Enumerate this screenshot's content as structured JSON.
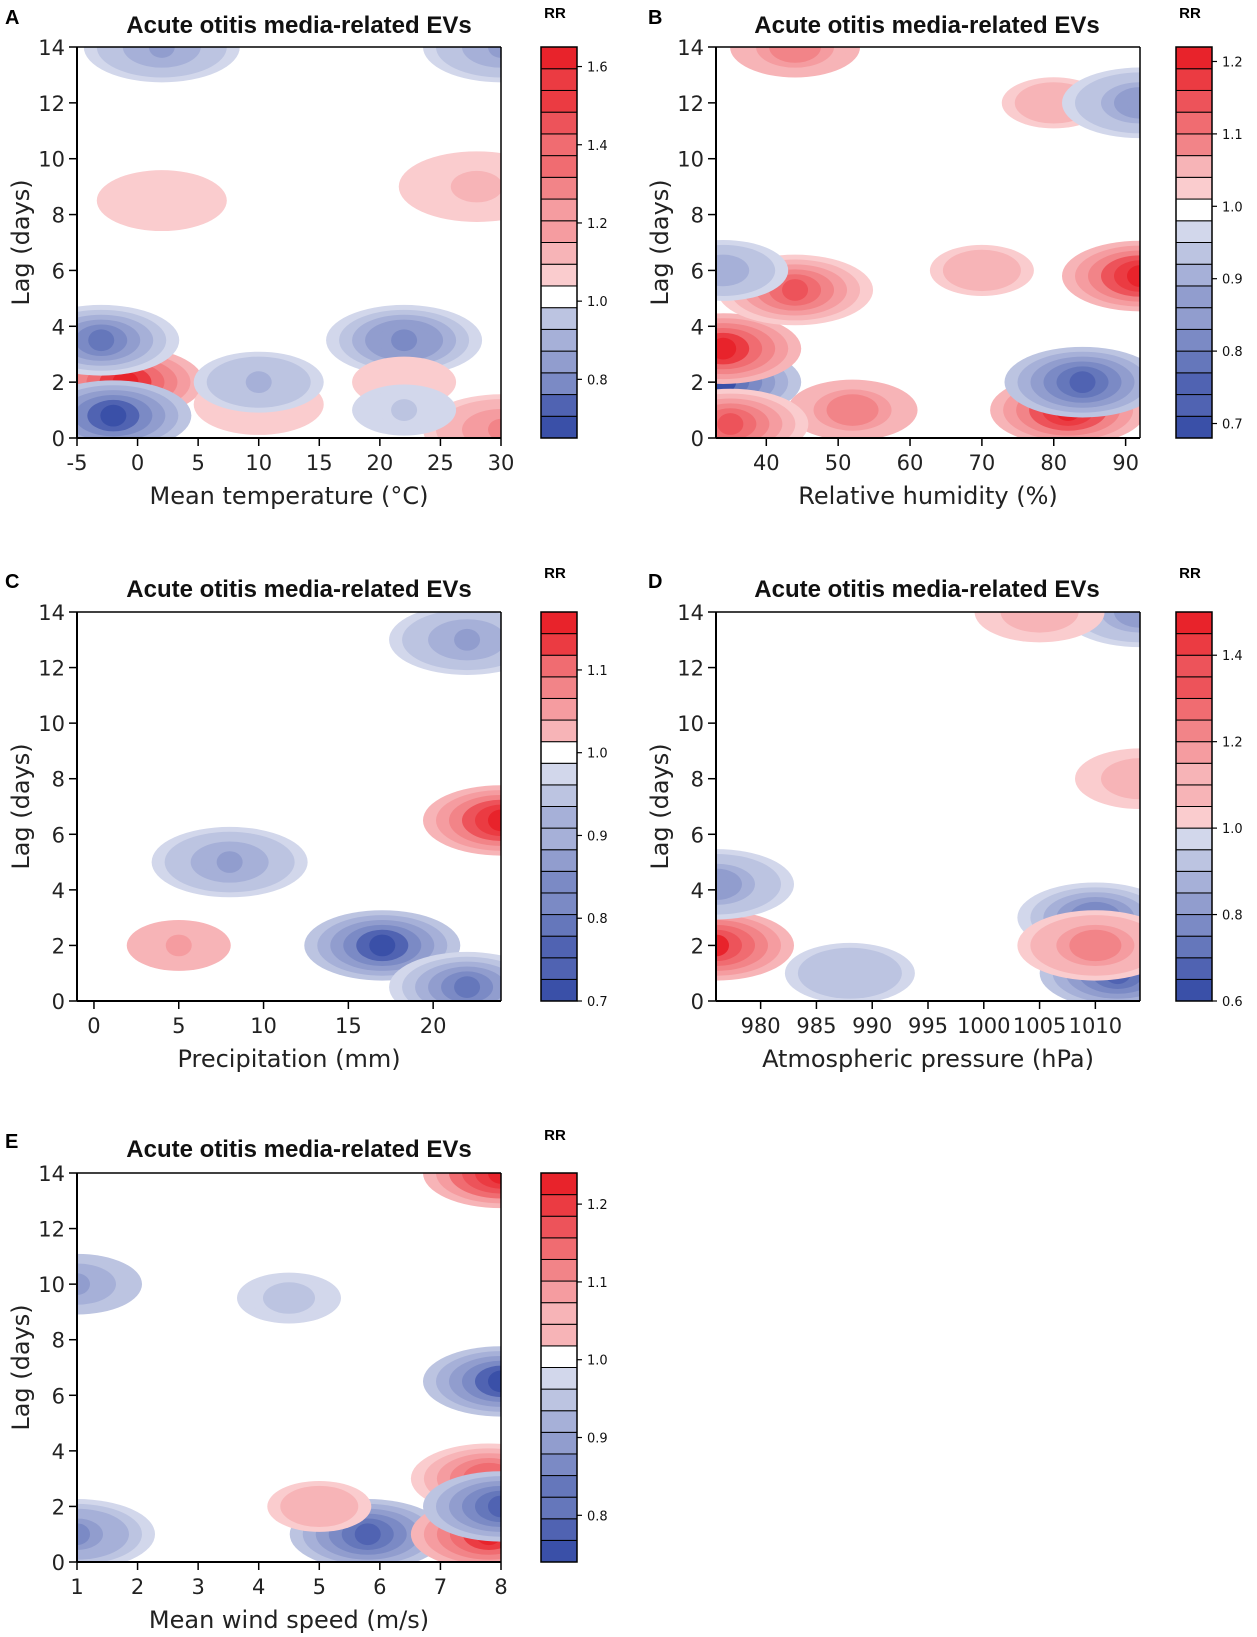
{
  "figure": {
    "colors": {
      "red": "#e8232b",
      "blue": "#3a50a8",
      "white": "#ffffff",
      "axis": "#000000",
      "text": "#222222"
    }
  },
  "chart_data": [
    {
      "type": "heatmap",
      "panel": "A",
      "title": "Acute otitis media-related EVs",
      "xlabel": "Mean temperature (°C)",
      "ylabel": "Lag (days)",
      "xlim": [
        -5,
        30
      ],
      "ylim": [
        0,
        14
      ],
      "xticks": [
        "-5",
        "0",
        "5",
        "10",
        "15",
        "20",
        "25",
        "30"
      ],
      "yticks": [
        "0",
        "2",
        "4",
        "6",
        "8",
        "10",
        "12",
        "14"
      ],
      "colorbar": {
        "label": "RR",
        "range": [
          0.65,
          1.65
        ],
        "ticks": [
          "0.8",
          "1.0",
          "1.2",
          "1.4",
          "1.6"
        ]
      },
      "features": [
        {
          "x": -1,
          "y": 2,
          "rr": 1.6
        },
        {
          "x": -2,
          "y": 0.8,
          "rr": 0.68
        },
        {
          "x": -3,
          "y": 3.5,
          "rr": 0.75
        },
        {
          "x": 22,
          "y": 3.5,
          "rr": 0.8
        },
        {
          "x": 2,
          "y": 14,
          "rr": 0.85
        },
        {
          "x": 30,
          "y": 14,
          "rr": 0.85
        },
        {
          "x": 2,
          "y": 8.5,
          "rr": 1.08
        },
        {
          "x": 28,
          "y": 9,
          "rr": 1.12
        },
        {
          "x": 30,
          "y": 0.3,
          "rr": 1.25
        },
        {
          "x": 10,
          "y": 1.2,
          "rr": 1.08
        },
        {
          "x": 10,
          "y": 2,
          "rr": 0.9
        },
        {
          "x": 22,
          "y": 2,
          "rr": 1.05
        },
        {
          "x": 22,
          "y": 1,
          "rr": 0.95
        }
      ]
    },
    {
      "type": "heatmap",
      "panel": "B",
      "title": "Acute otitis media-related EVs",
      "xlabel": "Relative humidity (%)",
      "ylabel": "Lag (days)",
      "xlim": [
        33,
        92
      ],
      "ylim": [
        0,
        14
      ],
      "xticks": [
        "40",
        "50",
        "60",
        "70",
        "80",
        "90"
      ],
      "yticks": [
        "0",
        "2",
        "4",
        "6",
        "8",
        "10",
        "12",
        "14"
      ],
      "colorbar": {
        "label": "RR",
        "range": [
          0.68,
          1.22
        ],
        "ticks": [
          "0.7",
          "0.8",
          "0.9",
          "1.0",
          "1.1",
          "1.2"
        ]
      },
      "features": [
        {
          "x": 34,
          "y": 2,
          "rr": 0.72
        },
        {
          "x": 34,
          "y": 3.2,
          "rr": 1.2
        },
        {
          "x": 44,
          "y": 5.3,
          "rr": 1.15
        },
        {
          "x": 34,
          "y": 6,
          "rr": 0.9
        },
        {
          "x": 92,
          "y": 5.8,
          "rr": 1.22
        },
        {
          "x": 82,
          "y": 1,
          "rr": 1.22
        },
        {
          "x": 84,
          "y": 2,
          "rr": 0.75
        },
        {
          "x": 44,
          "y": 14,
          "rr": 1.1
        },
        {
          "x": 80,
          "y": 12,
          "rr": 1.05
        },
        {
          "x": 92,
          "y": 12,
          "rr": 0.85
        },
        {
          "x": 70,
          "y": 6,
          "rr": 1.05
        },
        {
          "x": 52,
          "y": 1,
          "rr": 1.1
        },
        {
          "x": 35,
          "y": 0.5,
          "rr": 1.15
        }
      ]
    },
    {
      "type": "heatmap",
      "panel": "C",
      "title": "Acute otitis media-related EVs",
      "xlabel": "Precipitation (mm)",
      "ylabel": "Lag (days)",
      "xlim": [
        -1,
        24
      ],
      "ylim": [
        0,
        14
      ],
      "xticks": [
        "0",
        "5",
        "10",
        "15",
        "20"
      ],
      "yticks": [
        "0",
        "2",
        "4",
        "6",
        "8",
        "10",
        "12",
        "14"
      ],
      "colorbar": {
        "label": "RR",
        "range": [
          0.7,
          1.17
        ],
        "ticks": [
          "0.7",
          "0.8",
          "0.9",
          "1.0",
          "1.1"
        ]
      },
      "features": [
        {
          "x": 24,
          "y": 6.5,
          "rr": 1.17
        },
        {
          "x": 17,
          "y": 2,
          "rr": 0.72
        },
        {
          "x": 8,
          "y": 5,
          "rr": 0.88
        },
        {
          "x": 5,
          "y": 2,
          "rr": 1.05
        },
        {
          "x": 22,
          "y": 13,
          "rr": 0.88
        },
        {
          "x": 22,
          "y": 0.5,
          "rr": 0.8
        }
      ]
    },
    {
      "type": "heatmap",
      "panel": "D",
      "title": "Acute otitis media-related EVs",
      "xlabel": "Atmospheric pressure (hPa)",
      "ylabel": "Lag (days)",
      "xlim": [
        976,
        1014
      ],
      "ylim": [
        0,
        14
      ],
      "xticks": [
        "980",
        "985",
        "990",
        "995",
        "1000",
        "1005",
        "1010"
      ],
      "yticks": [
        "0",
        "2",
        "4",
        "6",
        "8",
        "10",
        "12",
        "14"
      ],
      "colorbar": {
        "label": "RR",
        "range": [
          0.6,
          1.5
        ],
        "ticks": [
          "0.6",
          "0.8",
          "1.0",
          "1.2",
          "1.4"
        ]
      },
      "features": [
        {
          "x": 976,
          "y": 2,
          "rr": 1.45
        },
        {
          "x": 976,
          "y": 4.2,
          "rr": 0.8
        },
        {
          "x": 1010,
          "y": 3,
          "rr": 0.75
        },
        {
          "x": 1012,
          "y": 1,
          "rr": 0.65
        },
        {
          "x": 1010,
          "y": 2,
          "rr": 1.25
        },
        {
          "x": 988,
          "y": 1,
          "rr": 0.9
        },
        {
          "x": 1014,
          "y": 8,
          "rr": 1.1
        },
        {
          "x": 1014,
          "y": 14,
          "rr": 0.8
        },
        {
          "x": 1005,
          "y": 14,
          "rr": 1.1
        }
      ]
    },
    {
      "type": "heatmap",
      "panel": "E",
      "title": "Acute otitis media-related EVs",
      "xlabel": "Mean wind speed (m/s)",
      "ylabel": "Lag (days)",
      "xlim": [
        1,
        8
      ],
      "ylim": [
        0,
        14
      ],
      "xticks": [
        "1",
        "2",
        "3",
        "4",
        "5",
        "6",
        "7",
        "8"
      ],
      "yticks": [
        "0",
        "2",
        "4",
        "6",
        "8",
        "10",
        "12",
        "14"
      ],
      "colorbar": {
        "label": "RR",
        "range": [
          0.74,
          1.24
        ],
        "ticks": [
          "0.8",
          "0.9",
          "1.0",
          "1.1",
          "1.2"
        ]
      },
      "features": [
        {
          "x": 8,
          "y": 14,
          "rr": 1.24
        },
        {
          "x": 8,
          "y": 6.5,
          "rr": 0.76
        },
        {
          "x": 1,
          "y": 10,
          "rr": 0.9
        },
        {
          "x": 4.5,
          "y": 9.5,
          "rr": 0.96
        },
        {
          "x": 1,
          "y": 1,
          "rr": 0.86
        },
        {
          "x": 5.8,
          "y": 1,
          "rr": 0.8
        },
        {
          "x": 7.8,
          "y": 1,
          "rr": 1.22
        },
        {
          "x": 7.8,
          "y": 3,
          "rr": 1.15
        },
        {
          "x": 8,
          "y": 2,
          "rr": 0.78
        },
        {
          "x": 5,
          "y": 2,
          "rr": 1.05
        }
      ]
    }
  ]
}
